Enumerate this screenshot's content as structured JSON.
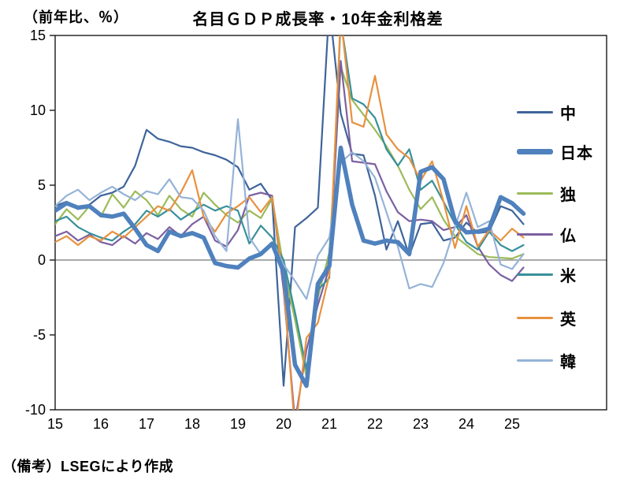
{
  "title": "名目ＧＤＰ成長率・10年金利格差",
  "y_axis_note": "（前年比、％）",
  "footer": "（備考）LSEGにより作成",
  "chart_data": {
    "type": "line",
    "x_start": 15,
    "x_step": 0.25,
    "x_end": 25.25,
    "x_tick_labels": [
      "15",
      "16",
      "17",
      "18",
      "19",
      "20",
      "21",
      "22",
      "23",
      "24",
      "25"
    ],
    "y_ticks": [
      15,
      10,
      5,
      0,
      -5,
      -10
    ],
    "ylim": [
      -10,
      15
    ],
    "zero_line": true,
    "grid": false,
    "legend_position": "right-inside",
    "series": [
      {
        "name": "中",
        "color": "#3E649A",
        "thick": false,
        "values": [
          3.6,
          3.9,
          3.4,
          3.7,
          4.3,
          4.5,
          4.9,
          6.3,
          8.7,
          8.1,
          7.9,
          7.6,
          7.5,
          7.2,
          7.0,
          6.7,
          6.2,
          4.7,
          5.1,
          4.0,
          -8.4,
          2.2,
          2.8,
          3.5,
          17.0,
          9.8,
          7.1,
          7.0,
          4.3,
          0.7,
          2.6,
          0.3,
          2.4,
          2.5,
          1.3,
          1.5,
          2.5,
          1.8,
          1.9,
          3.6,
          3.3,
          2.4
        ]
      },
      {
        "name": "日本",
        "color": "#4F81BD",
        "thick": true,
        "values": [
          3.3,
          3.8,
          3.5,
          3.6,
          3.0,
          2.9,
          3.1,
          2.1,
          1.0,
          0.6,
          1.9,
          1.6,
          1.8,
          1.5,
          -0.2,
          -0.4,
          -0.5,
          0.1,
          0.4,
          1.1,
          -0.8,
          -7.0,
          -8.4,
          -1.6,
          -0.4,
          7.5,
          3.7,
          1.3,
          1.1,
          1.3,
          1.2,
          0.4,
          5.9,
          6.2,
          5.4,
          2.6,
          1.85,
          1.9,
          2.1,
          4.2,
          3.8,
          3.1
        ]
      },
      {
        "name": "独",
        "color": "#9BBB59",
        "thick": false,
        "values": [
          2.4,
          3.4,
          2.7,
          3.6,
          2.9,
          4.4,
          3.5,
          4.6,
          4.0,
          3.0,
          4.3,
          3.4,
          2.9,
          4.5,
          3.7,
          3.0,
          2.5,
          3.3,
          2.8,
          4.1,
          -0.5,
          -4.0,
          -7.8,
          -2.5,
          0.5,
          12.9,
          10.7,
          9.7,
          8.7,
          7.6,
          6.3,
          4.7,
          3.4,
          4.2,
          2.7,
          1.6,
          1.0,
          0.4,
          0.2,
          0.15,
          0.1,
          0.4
        ]
      },
      {
        "name": "仏",
        "color": "#7C60A0",
        "thick": false,
        "values": [
          1.6,
          1.9,
          1.3,
          1.7,
          1.2,
          1.0,
          1.6,
          1.1,
          1.8,
          1.4,
          2.2,
          1.6,
          2.4,
          2.9,
          1.3,
          0.9,
          2.0,
          4.3,
          4.5,
          4.3,
          -2.0,
          -10.8,
          -6.0,
          -3.0,
          -0.5,
          13.3,
          6.6,
          6.5,
          6.4,
          4.6,
          3.2,
          2.6,
          2.7,
          2.6,
          2.0,
          2.2,
          3.0,
          0.9,
          -0.3,
          -1.0,
          -1.4,
          -0.5
        ]
      },
      {
        "name": "米",
        "color": "#38909A",
        "thick": false,
        "values": [
          2.6,
          2.9,
          2.2,
          1.8,
          1.5,
          1.3,
          1.9,
          2.4,
          3.3,
          2.9,
          3.4,
          2.7,
          3.2,
          3.7,
          3.3,
          3.6,
          3.3,
          1.1,
          2.3,
          1.5,
          0.0,
          -3.5,
          -7.3,
          -2.0,
          -1.2,
          16.0,
          10.8,
          10.4,
          9.5,
          7.4,
          6.3,
          7.4,
          4.7,
          5.3,
          3.9,
          2.4,
          1.2,
          0.7,
          1.9,
          1.0,
          0.6,
          1.0
        ]
      },
      {
        "name": "英",
        "color": "#E8913F",
        "thick": false,
        "values": [
          1.2,
          1.6,
          1.0,
          1.6,
          1.3,
          1.9,
          1.5,
          2.2,
          2.9,
          3.6,
          3.3,
          4.5,
          6.0,
          2.9,
          1.9,
          3.1,
          3.6,
          4.2,
          3.2,
          4.2,
          -1.5,
          -11.5,
          -5.2,
          -4.2,
          -1.0,
          16.3,
          9.2,
          8.9,
          12.3,
          8.4,
          7.4,
          6.8,
          5.3,
          6.6,
          3.9,
          0.8,
          3.6,
          0.9,
          2.0,
          1.3,
          2.1,
          1.5
        ]
      },
      {
        "name": "韓",
        "color": "#95B3D7",
        "thick": false,
        "values": [
          3.6,
          4.3,
          4.7,
          4.0,
          4.5,
          4.9,
          4.4,
          4.0,
          4.6,
          4.4,
          5.4,
          4.2,
          4.1,
          3.3,
          1.6,
          0.6,
          9.4,
          1.5,
          0.4,
          1.2,
          -0.3,
          -1.4,
          -2.6,
          0.3,
          1.5,
          6.5,
          7.2,
          6.6,
          5.5,
          3.2,
          0.9,
          -1.9,
          -1.6,
          -1.8,
          -0.2,
          2.2,
          4.5,
          2.2,
          2.6,
          -0.3,
          -0.6,
          0.4
        ]
      }
    ]
  }
}
